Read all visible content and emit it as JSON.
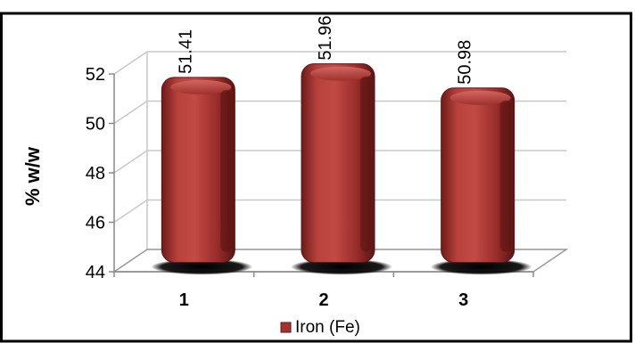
{
  "chart_data": {
    "type": "bar",
    "categories": [
      "1",
      "2",
      "3"
    ],
    "series": [
      {
        "name": "Iron (Fe)",
        "values": [
          51.41,
          51.96,
          50.98
        ]
      }
    ],
    "data_labels": [
      "51.41",
      "51.96",
      "50.98"
    ],
    "ylabel": "% w/w",
    "xlabel": "",
    "ylim": [
      44,
      52
    ],
    "yticks": [
      44,
      46,
      48,
      50,
      52
    ],
    "grid": true,
    "legend": "bottom-center",
    "style": "3d-cylinder",
    "colors": {
      "bar": "#a3312f",
      "bar_dark": "#5e1614",
      "bar_light": "#d05a55",
      "frame": "#000000",
      "grid": "#c8c8c8"
    }
  }
}
